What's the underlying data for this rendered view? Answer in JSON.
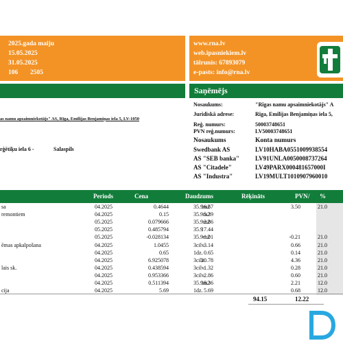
{
  "header": {
    "left_lines": [
      "2025.gada maiju",
      "15.05.2025",
      "31.05.2025"
    ],
    "left_num_a": "106",
    "left_num_b": "2505",
    "right_lines": [
      "www.rna.lv",
      "web.ipasniekiem.lv",
      "tālrunis: 67893079",
      "e-pasts: info@rna.lv"
    ],
    "recipient_title": "Saņēmējs"
  },
  "colors": {
    "orange": "#f39325",
    "green": "#127d3a"
  },
  "sender": {
    "line": "as namu apsaimniekotājs\" AS, Rīga, Emīlijas Benjamiņas iela 5, LV-1050",
    "address_a": "rģētiķu iela  6 -",
    "address_b": "Salaspils"
  },
  "recipient": {
    "rows": [
      {
        "label": "Nosaukums:",
        "value": "\"Rīgas namu apsaimniekotājs\" A"
      },
      {
        "label": "Juridiskā adrese:",
        "value": "Rīga, Emīlijas Benjamiņas iela 5,"
      },
      {
        "label": "Reģ. numurs:",
        "value": "50003748651"
      },
      {
        "label": "PVN reģ.numurs:",
        "value": "LV50003748651"
      }
    ],
    "bank_header": {
      "label": "Nosaukums",
      "value": "Konta numurs"
    },
    "banks": [
      {
        "label": "Swedbank AS",
        "value": "LV10HABA0551009938554"
      },
      {
        "label": "AS \"SEB banka\"",
        "value": "LV91UNLA0050008737264"
      },
      {
        "label": "AS \"Citadele\"",
        "value": "LV49PARX000481657000I"
      },
      {
        "label": "AS \"Industra\"",
        "value": "LV19MULT1010907960010"
      }
    ]
  },
  "table": {
    "headers": {
      "periods": "Periods",
      "cena": "Cena",
      "daudzums": "Daudzums",
      "rekinats": "Rēķināts",
      "pvn": "PVN",
      "pct": "%"
    },
    "rows": [
      {
        "label": "sa",
        "period": "04.2025",
        "price": "0.4644",
        "qty": "35.9m2",
        "amount": "16.67",
        "vat": "3.50",
        "pct": "21.0"
      },
      {
        "label": "remontiem",
        "period": "04.2025",
        "price": "0.15",
        "qty": "35.9m2",
        "amount": "5.39",
        "vat": "",
        "pct": ""
      },
      {
        "label": "",
        "period": "05.2025",
        "price": "0.079666",
        "qty": "35.9m2",
        "amount": "2.86",
        "vat": "",
        "pct": ""
      },
      {
        "label": "",
        "period": "05.2025",
        "price": "0.485794",
        "qty": "35.9",
        "amount": "17.44",
        "vat": "",
        "pct": ""
      },
      {
        "label": "",
        "period": "05.2025",
        "price": "-0.028134",
        "qty": "35.9m2",
        "amount": "-1.01",
        "vat": "-0.21",
        "pct": "21.0"
      },
      {
        "label": "ēmas apkalpošana",
        "period": "04.2025",
        "price": "1.0455",
        "qty": "3cilv.",
        "amount": "3.14",
        "vat": "0.66",
        "pct": "21.0"
      },
      {
        "label": "",
        "period": "04.2025",
        "price": "0.65",
        "qty": "1dz.",
        "amount": "0.65",
        "vat": "0.14",
        "pct": "21.0"
      },
      {
        "label": "",
        "period": "04.2025",
        "price": "6.925078",
        "qty": "3cilv.",
        "amount": "20.78",
        "vat": "4.36",
        "pct": "21.0"
      },
      {
        "label": "lais sk.",
        "period": "04.2025",
        "price": "0.438594",
        "qty": "3cilv.",
        "amount": "1.32",
        "vat": "0.28",
        "pct": "21.0"
      },
      {
        "label": "",
        "period": "04.2025",
        "price": "0.953366",
        "qty": "3cilv.",
        "amount": "2.86",
        "vat": "0.60",
        "pct": "21.0"
      },
      {
        "label": "",
        "period": "04.2025",
        "price": "0.511394",
        "qty": "35.9m2",
        "amount": "18.36",
        "vat": "2.21",
        "pct": "12.0"
      },
      {
        "label": "cija",
        "period": "04.2025",
        "price": "5.69",
        "qty": "1dz.",
        "amount": "5.69",
        "vat": "0.68",
        "pct": "12.0"
      }
    ],
    "total_amount": "94.15",
    "total_vat": "12.22"
  },
  "icons": {
    "logo": "house-logo-icon",
    "watermark": "letter-d-watermark-icon"
  }
}
